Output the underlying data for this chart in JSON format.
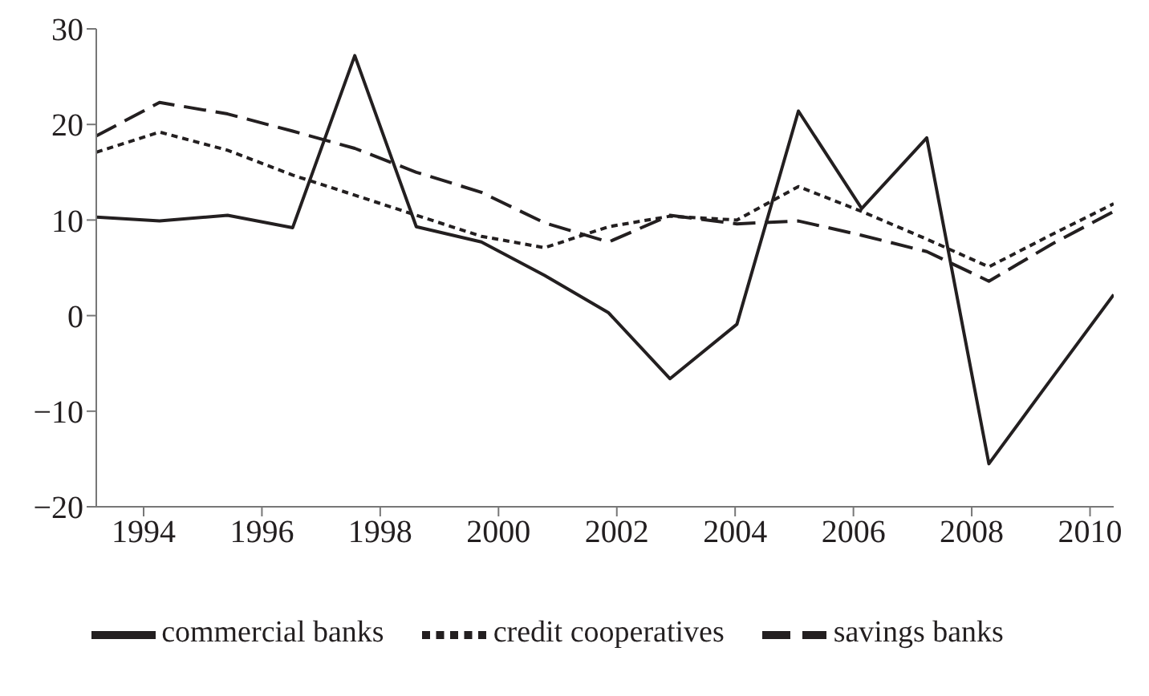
{
  "chart_data": {
    "type": "line",
    "x": [
      1993.2,
      1994.27,
      1995.42,
      1996.52,
      1997.57,
      1998.61,
      1999.71,
      2000.78,
      2001.86,
      2002.9,
      2004.03,
      2005.07,
      2006.14,
      2007.24,
      2008.29,
      2009.36,
      2010.4
    ],
    "series": [
      {
        "name": "commercial banks",
        "color": "#231f20",
        "line_style": "solid",
        "values": [
          10.3,
          9.9,
          10.5,
          9.2,
          27.2,
          9.3,
          7.7,
          4.2,
          0.3,
          -6.6,
          -0.9,
          21.4,
          11.2,
          18.6,
          -15.5,
          -6.5,
          2.2
        ]
      },
      {
        "name": "credit cooperatives",
        "color": "#231f20",
        "line_style": "dotted",
        "values": [
          17.1,
          19.2,
          17.3,
          14.7,
          12.6,
          10.5,
          8.3,
          7.1,
          9.3,
          10.4,
          10.0,
          13.5,
          10.9,
          8.0,
          5.1,
          8.5,
          11.7
        ]
      },
      {
        "name": "savings banks",
        "color": "#231f20",
        "line_style": "dashed",
        "values": [
          18.8,
          22.3,
          21.1,
          19.3,
          17.5,
          15.0,
          12.9,
          9.7,
          7.7,
          10.5,
          9.6,
          9.9,
          8.4,
          6.7,
          3.6,
          7.5,
          10.9
        ]
      }
    ],
    "xlim": [
      1993.2,
      2010.4
    ],
    "xticks": [
      1994,
      1996,
      1998,
      2000,
      2002,
      2004,
      2006,
      2008,
      2010
    ],
    "ylim": [
      -20,
      30
    ],
    "yticks": [
      -20,
      -10,
      0,
      10,
      20,
      30
    ],
    "grid": false,
    "legend": "bottom",
    "marker": "none"
  }
}
